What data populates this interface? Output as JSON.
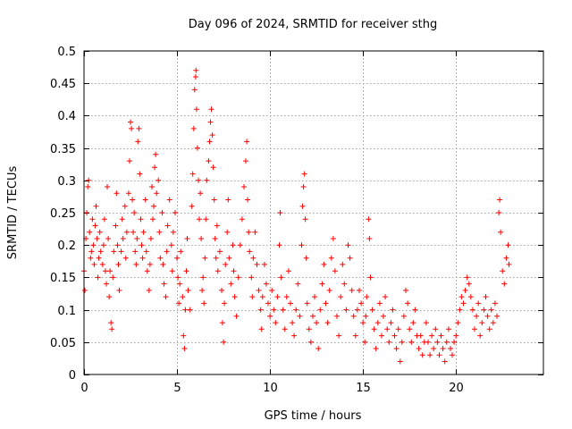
{
  "chart_data": {
    "type": "scatter",
    "title": "Day 096 of 2024, SRMTID for receiver sthg",
    "xlabel": "GPS time / hours",
    "ylabel": "SRMTID / TECUs",
    "xlim": [
      0,
      24.7
    ],
    "ylim": [
      0,
      0.5
    ],
    "xticks": [
      0,
      5,
      10,
      15,
      20
    ],
    "xtick_labels": [
      "0",
      "5",
      "10",
      "15",
      "20"
    ],
    "yticks": [
      0,
      0.05,
      0.1,
      0.15,
      0.2,
      0.25,
      0.3,
      0.35,
      0.4,
      0.45,
      0.5
    ],
    "ytick_labels": [
      "0",
      "0.05",
      "0.1",
      "0.15",
      "0.2",
      "0.25",
      "0.3",
      "0.35",
      "0.4",
      "0.45",
      "0.5"
    ],
    "grid": true,
    "marker": "+",
    "marker_color": "#ff0000",
    "series": [
      {
        "name": "SRMTID",
        "points": [
          [
            0.0,
            0.16
          ],
          [
            0.05,
            0.13
          ],
          [
            0.1,
            0.21
          ],
          [
            0.15,
            0.25
          ],
          [
            0.2,
            0.29
          ],
          [
            0.25,
            0.3
          ],
          [
            0.3,
            0.22
          ],
          [
            0.35,
            0.18
          ],
          [
            0.4,
            0.19
          ],
          [
            0.45,
            0.24
          ],
          [
            0.5,
            0.2
          ],
          [
            0.55,
            0.17
          ],
          [
            0.6,
            0.23
          ],
          [
            0.65,
            0.26
          ],
          [
            0.7,
            0.21
          ],
          [
            0.75,
            0.15
          ],
          [
            0.8,
            0.18
          ],
          [
            0.85,
            0.22
          ],
          [
            0.9,
            0.19
          ],
          [
            1.0,
            0.17
          ],
          [
            1.05,
            0.2
          ],
          [
            1.1,
            0.24
          ],
          [
            1.15,
            0.16
          ],
          [
            1.2,
            0.14
          ],
          [
            1.25,
            0.29
          ],
          [
            1.3,
            0.21
          ],
          [
            1.35,
            0.12
          ],
          [
            1.4,
            0.16
          ],
          [
            1.45,
            0.08
          ],
          [
            1.5,
            0.07
          ],
          [
            1.55,
            0.15
          ],
          [
            1.6,
            0.19
          ],
          [
            1.7,
            0.23
          ],
          [
            1.75,
            0.28
          ],
          [
            1.8,
            0.2
          ],
          [
            1.85,
            0.17
          ],
          [
            1.9,
            0.13
          ],
          [
            2.0,
            0.19
          ],
          [
            2.05,
            0.24
          ],
          [
            2.1,
            0.21
          ],
          [
            2.2,
            0.26
          ],
          [
            2.25,
            0.18
          ],
          [
            2.3,
            0.22
          ],
          [
            2.4,
            0.28
          ],
          [
            2.45,
            0.33
          ],
          [
            2.5,
            0.39
          ],
          [
            2.55,
            0.38
          ],
          [
            2.6,
            0.27
          ],
          [
            2.65,
            0.22
          ],
          [
            2.7,
            0.25
          ],
          [
            2.75,
            0.19
          ],
          [
            2.8,
            0.17
          ],
          [
            2.85,
            0.21
          ],
          [
            2.9,
            0.36
          ],
          [
            2.95,
            0.38
          ],
          [
            3.0,
            0.31
          ],
          [
            3.05,
            0.24
          ],
          [
            3.1,
            0.2
          ],
          [
            3.15,
            0.18
          ],
          [
            3.2,
            0.22
          ],
          [
            3.3,
            0.27
          ],
          [
            3.35,
            0.19
          ],
          [
            3.4,
            0.16
          ],
          [
            3.5,
            0.13
          ],
          [
            3.55,
            0.17
          ],
          [
            3.6,
            0.21
          ],
          [
            3.65,
            0.29
          ],
          [
            3.7,
            0.24
          ],
          [
            3.75,
            0.26
          ],
          [
            3.8,
            0.32
          ],
          [
            3.85,
            0.34
          ],
          [
            3.9,
            0.28
          ],
          [
            4.0,
            0.3
          ],
          [
            4.05,
            0.22
          ],
          [
            4.1,
            0.18
          ],
          [
            4.2,
            0.25
          ],
          [
            4.25,
            0.17
          ],
          [
            4.3,
            0.14
          ],
          [
            4.4,
            0.12
          ],
          [
            4.45,
            0.19
          ],
          [
            4.5,
            0.23
          ],
          [
            4.6,
            0.27
          ],
          [
            4.7,
            0.2
          ],
          [
            4.75,
            0.16
          ],
          [
            4.8,
            0.22
          ],
          [
            4.9,
            0.25
          ],
          [
            5.0,
            0.18
          ],
          [
            5.05,
            0.15
          ],
          [
            5.1,
            0.11
          ],
          [
            5.15,
            0.14
          ],
          [
            5.2,
            0.19
          ],
          [
            5.3,
            0.12
          ],
          [
            5.35,
            0.06
          ],
          [
            5.4,
            0.04
          ],
          [
            5.45,
            0.1
          ],
          [
            5.5,
            0.16
          ],
          [
            5.55,
            0.21
          ],
          [
            5.6,
            0.13
          ],
          [
            5.7,
            0.1
          ],
          [
            5.8,
            0.26
          ],
          [
            5.85,
            0.31
          ],
          [
            5.9,
            0.38
          ],
          [
            5.95,
            0.44
          ],
          [
            6.0,
            0.46
          ],
          [
            6.02,
            0.47
          ],
          [
            6.05,
            0.41
          ],
          [
            6.1,
            0.35
          ],
          [
            6.15,
            0.3
          ],
          [
            6.2,
            0.24
          ],
          [
            6.25,
            0.28
          ],
          [
            6.3,
            0.21
          ],
          [
            6.35,
            0.13
          ],
          [
            6.4,
            0.15
          ],
          [
            6.45,
            0.11
          ],
          [
            6.5,
            0.18
          ],
          [
            6.55,
            0.24
          ],
          [
            6.6,
            0.3
          ],
          [
            6.7,
            0.33
          ],
          [
            6.75,
            0.36
          ],
          [
            6.8,
            0.39
          ],
          [
            6.85,
            0.41
          ],
          [
            6.9,
            0.37
          ],
          [
            6.95,
            0.32
          ],
          [
            7.0,
            0.27
          ],
          [
            7.05,
            0.21
          ],
          [
            7.1,
            0.18
          ],
          [
            7.15,
            0.23
          ],
          [
            7.2,
            0.16
          ],
          [
            7.3,
            0.19
          ],
          [
            7.4,
            0.13
          ],
          [
            7.45,
            0.08
          ],
          [
            7.5,
            0.05
          ],
          [
            7.55,
            0.11
          ],
          [
            7.6,
            0.17
          ],
          [
            7.7,
            0.22
          ],
          [
            7.75,
            0.27
          ],
          [
            7.8,
            0.18
          ],
          [
            7.9,
            0.14
          ],
          [
            8.0,
            0.2
          ],
          [
            8.05,
            0.16
          ],
          [
            8.1,
            0.12
          ],
          [
            8.2,
            0.09
          ],
          [
            8.3,
            0.15
          ],
          [
            8.4,
            0.2
          ],
          [
            8.5,
            0.24
          ],
          [
            8.6,
            0.29
          ],
          [
            8.7,
            0.33
          ],
          [
            8.75,
            0.36
          ],
          [
            8.8,
            0.27
          ],
          [
            8.85,
            0.22
          ],
          [
            8.9,
            0.19
          ],
          [
            9.0,
            0.15
          ],
          [
            9.05,
            0.12
          ],
          [
            9.1,
            0.18
          ],
          [
            9.2,
            0.22
          ],
          [
            9.3,
            0.17
          ],
          [
            9.4,
            0.13
          ],
          [
            9.5,
            0.1
          ],
          [
            9.55,
            0.07
          ],
          [
            9.6,
            0.12
          ],
          [
            9.7,
            0.17
          ],
          [
            9.8,
            0.14
          ],
          [
            9.9,
            0.11
          ],
          [
            10.0,
            0.09
          ],
          [
            10.1,
            0.13
          ],
          [
            10.2,
            0.1
          ],
          [
            10.3,
            0.08
          ],
          [
            10.4,
            0.12
          ],
          [
            10.5,
            0.2
          ],
          [
            10.55,
            0.25
          ],
          [
            10.6,
            0.15
          ],
          [
            10.7,
            0.1
          ],
          [
            10.8,
            0.07
          ],
          [
            10.9,
            0.12
          ],
          [
            11.0,
            0.16
          ],
          [
            11.1,
            0.11
          ],
          [
            11.2,
            0.08
          ],
          [
            11.3,
            0.06
          ],
          [
            11.4,
            0.1
          ],
          [
            11.5,
            0.14
          ],
          [
            11.6,
            0.09
          ],
          [
            11.7,
            0.2
          ],
          [
            11.75,
            0.26
          ],
          [
            11.8,
            0.29
          ],
          [
            11.85,
            0.31
          ],
          [
            11.9,
            0.24
          ],
          [
            11.95,
            0.18
          ],
          [
            12.0,
            0.11
          ],
          [
            12.1,
            0.07
          ],
          [
            12.2,
            0.05
          ],
          [
            12.3,
            0.09
          ],
          [
            12.4,
            0.12
          ],
          [
            12.5,
            0.08
          ],
          [
            12.6,
            0.04
          ],
          [
            12.7,
            0.1
          ],
          [
            12.8,
            0.14
          ],
          [
            12.9,
            0.17
          ],
          [
            13.0,
            0.11
          ],
          [
            13.1,
            0.08
          ],
          [
            13.2,
            0.13
          ],
          [
            13.3,
            0.18
          ],
          [
            13.4,
            0.21
          ],
          [
            13.5,
            0.16
          ],
          [
            13.6,
            0.09
          ],
          [
            13.7,
            0.06
          ],
          [
            13.8,
            0.12
          ],
          [
            13.9,
            0.17
          ],
          [
            14.0,
            0.14
          ],
          [
            14.1,
            0.1
          ],
          [
            14.2,
            0.2
          ],
          [
            14.3,
            0.18
          ],
          [
            14.4,
            0.13
          ],
          [
            14.5,
            0.09
          ],
          [
            14.6,
            0.06
          ],
          [
            14.7,
            0.1
          ],
          [
            14.8,
            0.13
          ],
          [
            14.9,
            0.11
          ],
          [
            15.0,
            0.08
          ],
          [
            15.1,
            0.05
          ],
          [
            15.15,
            0.09
          ],
          [
            15.2,
            0.12
          ],
          [
            15.3,
            0.24
          ],
          [
            15.35,
            0.21
          ],
          [
            15.4,
            0.15
          ],
          [
            15.5,
            0.1
          ],
          [
            15.6,
            0.07
          ],
          [
            15.7,
            0.04
          ],
          [
            15.8,
            0.08
          ],
          [
            15.9,
            0.11
          ],
          [
            16.0,
            0.06
          ],
          [
            16.1,
            0.09
          ],
          [
            16.2,
            0.12
          ],
          [
            16.3,
            0.07
          ],
          [
            16.4,
            0.05
          ],
          [
            16.5,
            0.08
          ],
          [
            16.6,
            0.1
          ],
          [
            16.7,
            0.06
          ],
          [
            16.8,
            0.04
          ],
          [
            16.9,
            0.07
          ],
          [
            17.0,
            0.02
          ],
          [
            17.1,
            0.05
          ],
          [
            17.2,
            0.09
          ],
          [
            17.3,
            0.13
          ],
          [
            17.4,
            0.11
          ],
          [
            17.5,
            0.07
          ],
          [
            17.6,
            0.05
          ],
          [
            17.7,
            0.08
          ],
          [
            17.8,
            0.1
          ],
          [
            17.9,
            0.06
          ],
          [
            18.0,
            0.04
          ],
          [
            18.1,
            0.06
          ],
          [
            18.2,
            0.03
          ],
          [
            18.3,
            0.05
          ],
          [
            18.4,
            0.08
          ],
          [
            18.5,
            0.05
          ],
          [
            18.6,
            0.03
          ],
          [
            18.7,
            0.06
          ],
          [
            18.8,
            0.04
          ],
          [
            18.9,
            0.07
          ],
          [
            19.0,
            0.05
          ],
          [
            19.1,
            0.03
          ],
          [
            19.2,
            0.06
          ],
          [
            19.3,
            0.04
          ],
          [
            19.4,
            0.02
          ],
          [
            19.5,
            0.05
          ],
          [
            19.6,
            0.07
          ],
          [
            19.7,
            0.04
          ],
          [
            19.8,
            0.03
          ],
          [
            19.9,
            0.05
          ],
          [
            20.0,
            0.06
          ],
          [
            20.1,
            0.08
          ],
          [
            20.2,
            0.1
          ],
          [
            20.3,
            0.12
          ],
          [
            20.4,
            0.11
          ],
          [
            20.5,
            0.13
          ],
          [
            20.6,
            0.15
          ],
          [
            20.7,
            0.14
          ],
          [
            20.8,
            0.12
          ],
          [
            20.9,
            0.1
          ],
          [
            21.0,
            0.07
          ],
          [
            21.1,
            0.09
          ],
          [
            21.2,
            0.11
          ],
          [
            21.3,
            0.06
          ],
          [
            21.4,
            0.08
          ],
          [
            21.5,
            0.1
          ],
          [
            21.6,
            0.12
          ],
          [
            21.7,
            0.09
          ],
          [
            21.8,
            0.07
          ],
          [
            21.9,
            0.1
          ],
          [
            22.0,
            0.08
          ],
          [
            22.1,
            0.11
          ],
          [
            22.2,
            0.09
          ],
          [
            22.3,
            0.25
          ],
          [
            22.35,
            0.27
          ],
          [
            22.4,
            0.22
          ],
          [
            22.5,
            0.16
          ],
          [
            22.6,
            0.14
          ],
          [
            22.7,
            0.18
          ],
          [
            22.8,
            0.2
          ],
          [
            22.85,
            0.17
          ]
        ]
      }
    ]
  }
}
